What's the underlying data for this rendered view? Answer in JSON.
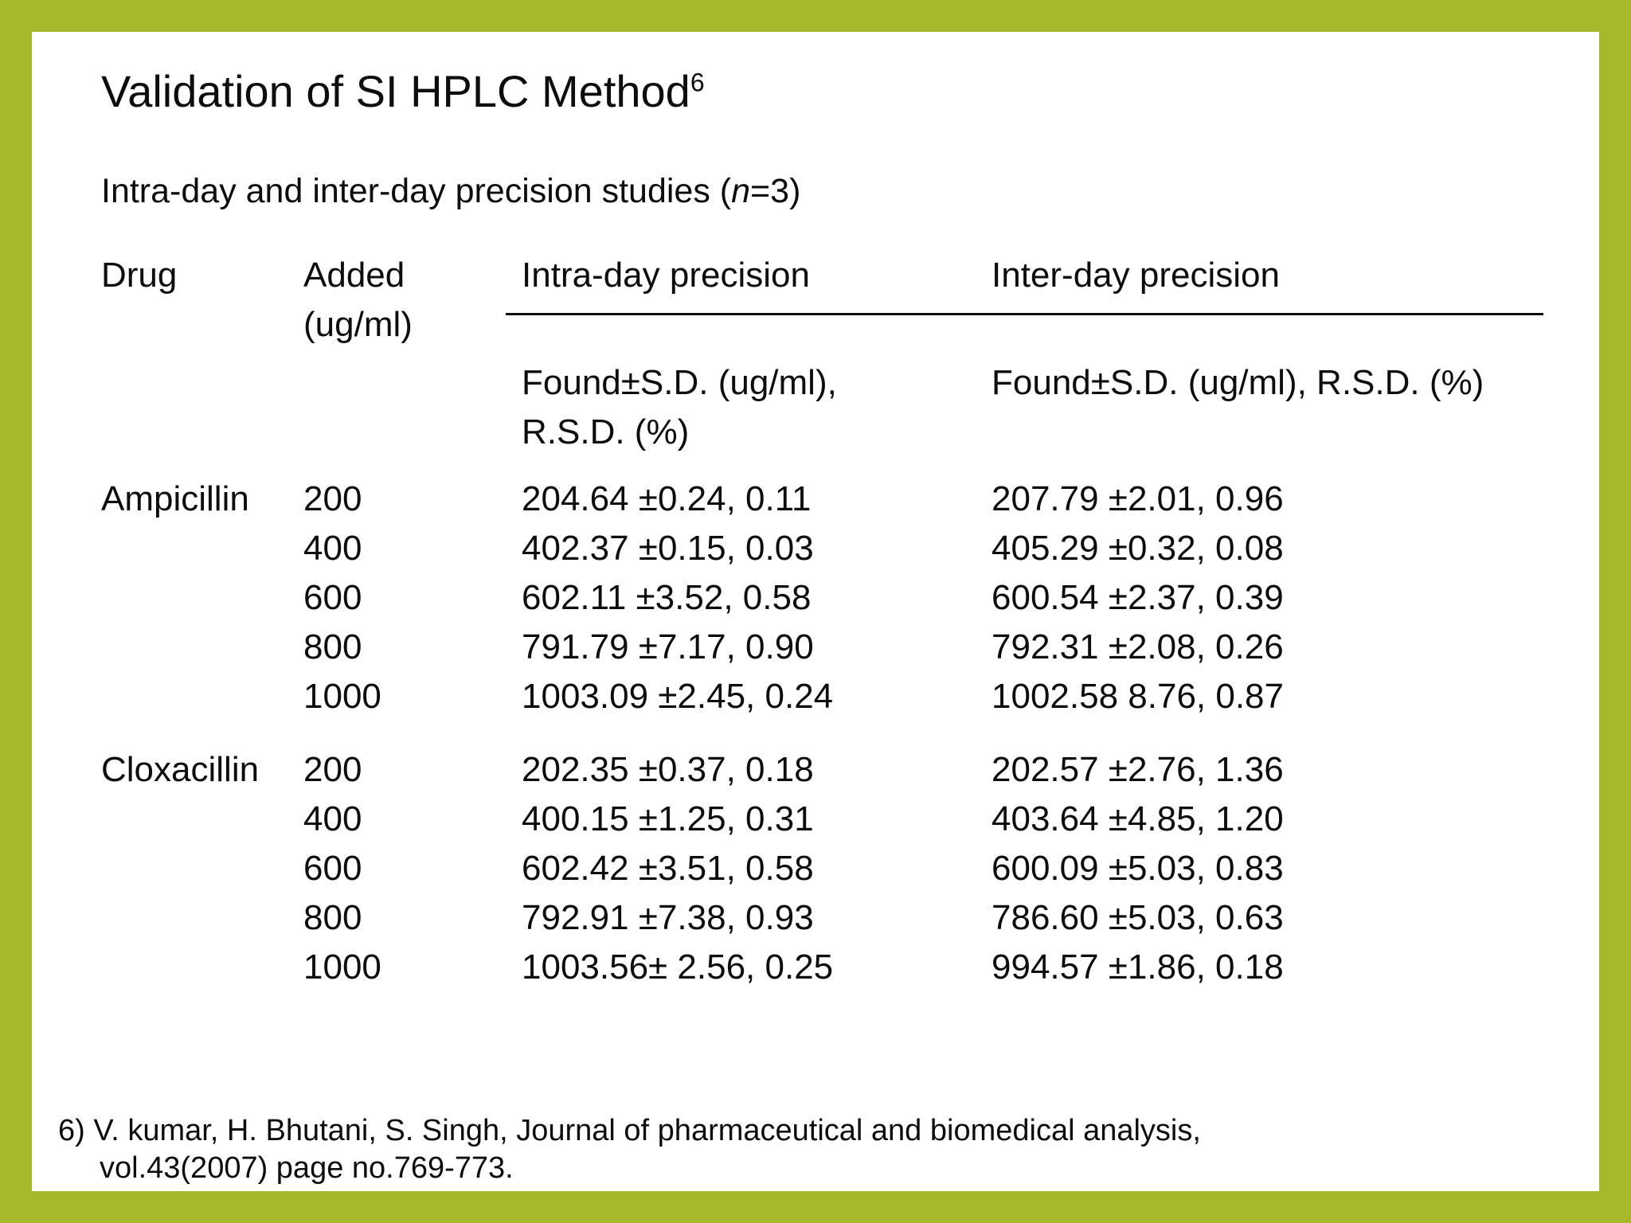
{
  "slide": {
    "title": "Validation of SI HPLC Method",
    "title_superscript": "6",
    "subtitle_prefix": "Intra-day and inter-day precision studies (",
    "subtitle_italic": "n",
    "subtitle_suffix": "=3)"
  },
  "table": {
    "headers": {
      "drug": "Drug",
      "added_line1": "Added",
      "added_line2": "(ug/ml)",
      "intra": "Intra-day precision",
      "inter": "Inter-day precision",
      "intra_sub_line1": "Found±S.D. (ug/ml),",
      "intra_sub_line2": "R.S.D. (%)",
      "inter_sub": "Found±S.D. (ug/ml), R.S.D. (%)"
    },
    "groups": [
      {
        "drug": "Ampicillin",
        "rows": [
          {
            "added": "200",
            "intra": "204.64 ±0.24, 0.11",
            "inter": "207.79 ±2.01, 0.96"
          },
          {
            "added": "400",
            "intra": "402.37 ±0.15, 0.03",
            "inter": "405.29 ±0.32, 0.08"
          },
          {
            "added": "600",
            "intra": "602.11 ±3.52, 0.58",
            "inter": "600.54 ±2.37, 0.39"
          },
          {
            "added": "800",
            "intra": "791.79 ±7.17, 0.90",
            "inter": "792.31 ±2.08, 0.26"
          },
          {
            "added": "1000",
            "intra": "1003.09 ±2.45, 0.24",
            "inter": "1002.58 8.76, 0.87"
          }
        ]
      },
      {
        "drug": "Cloxacillin",
        "rows": [
          {
            "added": "200",
            "intra": "202.35 ±0.37, 0.18",
            "inter": "202.57 ±2.76, 1.36"
          },
          {
            "added": "400",
            "intra": "400.15 ±1.25, 0.31",
            "inter": "403.64 ±4.85, 1.20"
          },
          {
            "added": "600",
            "intra": "602.42 ±3.51, 0.58",
            "inter": "600.09 ±5.03, 0.83"
          },
          {
            "added": "800",
            "intra": "792.91 ±7.38, 0.93",
            "inter": "786.60 ±5.03, 0.63"
          },
          {
            "added": "1000",
            "intra": "1003.56± 2.56, 0.25",
            "inter": "994.57 ±1.86, 0.18"
          }
        ]
      }
    ]
  },
  "footnote": {
    "line1": "6) V. kumar, H. Bhutani, S. Singh, Journal of pharmaceutical and biomedical analysis,",
    "line2": "vol.43(2007) page no.769-773."
  },
  "colors": {
    "slide_border_green": "#a8b82c",
    "slide_background": "#fffffe",
    "text": "#0d0d0d"
  }
}
